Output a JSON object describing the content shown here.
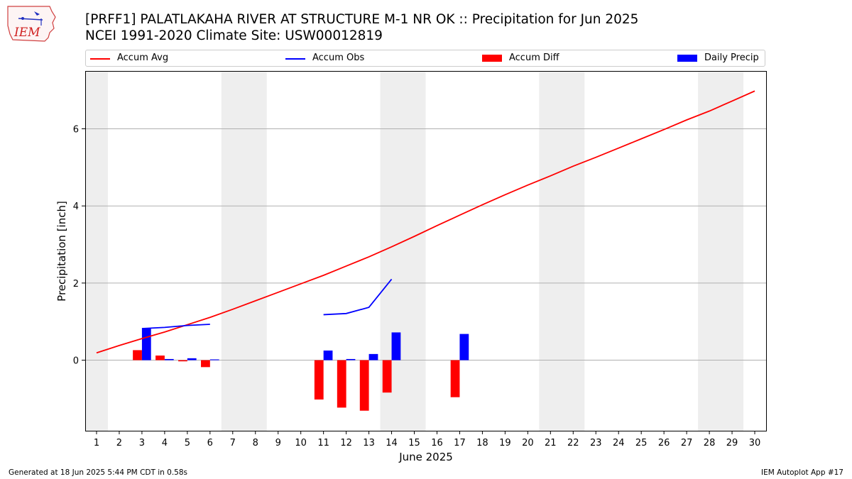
{
  "header": {
    "title_line1": "[PRFF1] PALATLAKAHA RIVER AT STRUCTURE M-1 NR OK :: Precipitation for Jun 2025",
    "title_line2": "NCEI 1991-2020 Climate Site: USW00012819",
    "logo_text": "IEM"
  },
  "footer": {
    "generated": "Generated at 18 Jun 2025 5:44 PM CDT in 0.58s",
    "app": "IEM Autoplot App #17"
  },
  "legend": [
    {
      "label": "Accum Avg",
      "kind": "line",
      "color": "#ff0000"
    },
    {
      "label": "Accum Obs",
      "kind": "line",
      "color": "#0000ff"
    },
    {
      "label": "Accum Diff",
      "kind": "patch",
      "color": "#ff0000"
    },
    {
      "label": "Daily Precip",
      "kind": "patch",
      "color": "#0000ff"
    }
  ],
  "chart_data": {
    "type": "bar",
    "xlabel": "June 2025",
    "ylabel": "Precipitation [inch]",
    "xlim": [
      0.5,
      30.5
    ],
    "ylim": [
      -1.83,
      7.5
    ],
    "x_ticks": [
      1,
      2,
      3,
      4,
      5,
      6,
      7,
      8,
      9,
      10,
      11,
      12,
      13,
      14,
      15,
      16,
      17,
      18,
      19,
      20,
      21,
      22,
      23,
      24,
      25,
      26,
      27,
      28,
      29,
      30
    ],
    "y_ticks": [
      0,
      2,
      4,
      6
    ],
    "grid": "horizontal",
    "legend_position": "top",
    "weekend_shading": [
      [
        0.5,
        1.5
      ],
      [
        6.5,
        8.5
      ],
      [
        13.5,
        15.5
      ],
      [
        20.5,
        22.5
      ],
      [
        27.5,
        29.5
      ]
    ],
    "accum_avg": {
      "name": "Accum Avg",
      "color": "#ff0000",
      "x": [
        1,
        2,
        3,
        4,
        5,
        6,
        7,
        8,
        9,
        10,
        11,
        12,
        13,
        14,
        15,
        16,
        17,
        18,
        19,
        20,
        21,
        22,
        23,
        24,
        25,
        26,
        27,
        28,
        29,
        30
      ],
      "y": [
        0.19,
        0.38,
        0.56,
        0.73,
        0.92,
        1.11,
        1.32,
        1.54,
        1.76,
        1.98,
        2.2,
        2.44,
        2.68,
        2.94,
        3.21,
        3.49,
        3.76,
        4.03,
        4.29,
        4.54,
        4.78,
        5.03,
        5.26,
        5.5,
        5.74,
        5.98,
        6.23,
        6.46,
        6.72,
        6.98
      ]
    },
    "accum_obs": {
      "name": "Accum Obs",
      "color": "#0000ff",
      "segments": [
        {
          "x": [
            3,
            4,
            5,
            6
          ],
          "y": [
            0.82,
            0.85,
            0.9,
            0.93
          ]
        },
        {
          "x": [
            11,
            12,
            13,
            14
          ],
          "y": [
            1.18,
            1.21,
            1.37,
            2.1
          ]
        }
      ]
    },
    "accum_diff": {
      "name": "Accum Diff",
      "color": "#ff0000",
      "x": [
        3,
        4,
        5,
        6,
        11,
        12,
        13,
        14,
        17
      ],
      "y": [
        0.26,
        0.12,
        -0.03,
        -0.18,
        -1.02,
        -1.23,
        -1.31,
        -0.84,
        -0.96
      ]
    },
    "daily_precip": {
      "name": "Daily Precip",
      "color": "#0000ff",
      "x": [
        3,
        4,
        5,
        6,
        11,
        12,
        13,
        14,
        17
      ],
      "y": [
        0.82,
        0.03,
        0.05,
        0.02,
        0.25,
        0.03,
        0.16,
        0.72,
        0.68
      ]
    }
  }
}
